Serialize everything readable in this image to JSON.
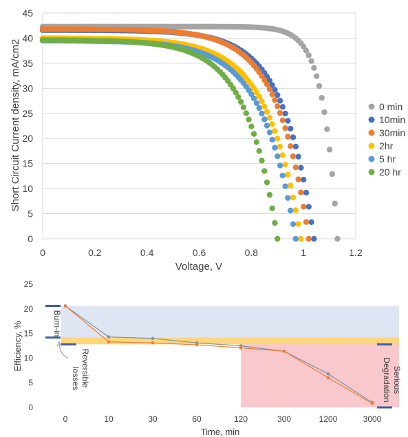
{
  "chart_data": [
    {
      "type": "scatter",
      "title": "",
      "xlabel": "Voltage, V",
      "ylabel": "Short Circuit Current density, mA/cm2",
      "xlim": [
        0,
        1.2
      ],
      "ylim": [
        0,
        45
      ],
      "xticks": [
        "0",
        "0.2",
        "0.4",
        "0.6",
        "0.8",
        "1",
        "1.2"
      ],
      "yticks": [
        "0",
        "5",
        "10",
        "15",
        "20",
        "25",
        "30",
        "35",
        "40",
        "45"
      ],
      "grid": "horizontal",
      "legend_position": "right",
      "series": [
        {
          "name": "0 min",
          "color": "#a5a5a5",
          "jsc": 42.3,
          "voc": 1.13,
          "knee": 0.055
        },
        {
          "name": "10min",
          "color": "#4472c4",
          "jsc": 41.6,
          "voc": 1.04,
          "knee": 0.12
        },
        {
          "name": "30min",
          "color": "#ed7d31",
          "jsc": 41.8,
          "voc": 1.02,
          "knee": 0.12
        },
        {
          "name": "2hr",
          "color": "#ffc000",
          "jsc": 40.0,
          "voc": 0.99,
          "knee": 0.13
        },
        {
          "name": "5 hr",
          "color": "#5b9bd5",
          "jsc": 39.5,
          "voc": 0.97,
          "knee": 0.13
        },
        {
          "name": "20 hr",
          "color": "#70ad47",
          "jsc": 39.6,
          "voc": 0.9,
          "knee": 0.12
        }
      ]
    },
    {
      "type": "line",
      "title": "",
      "xlabel": "Time, min",
      "ylabel": "Efficiency, %",
      "categories": [
        "0",
        "10",
        "30",
        "60",
        "120",
        "300",
        "1200",
        "3000"
      ],
      "ylim": [
        0,
        25
      ],
      "yticks": [
        "0",
        "5",
        "10",
        "15",
        "20",
        "25"
      ],
      "series": [
        {
          "color": "#7f93a7",
          "values": [
            20.6,
            14.3,
            14.0,
            13.1,
            12.5,
            11.4,
            6.8,
            1.0
          ]
        },
        {
          "color": "#ed7d31",
          "values": [
            20.6,
            13.3,
            13.1,
            12.7,
            12.1,
            11.4,
            6.0,
            0.8
          ]
        }
      ],
      "regions": [
        {
          "label": "Burn-in",
          "color": "#dfe5f3",
          "y_range": [
            14.2,
            20.6
          ],
          "x_range": [
            "0",
            "3000"
          ]
        },
        {
          "label": "Reversible losses",
          "color": "#fdd77c",
          "y_range": [
            12.8,
            14.2
          ],
          "x_range": [
            "0",
            "3000"
          ]
        },
        {
          "label": "Serious Degradation",
          "color": "#f8c8cc",
          "y_range": [
            0,
            12.8
          ],
          "x_range": [
            "120",
            "3000"
          ]
        }
      ]
    }
  ]
}
